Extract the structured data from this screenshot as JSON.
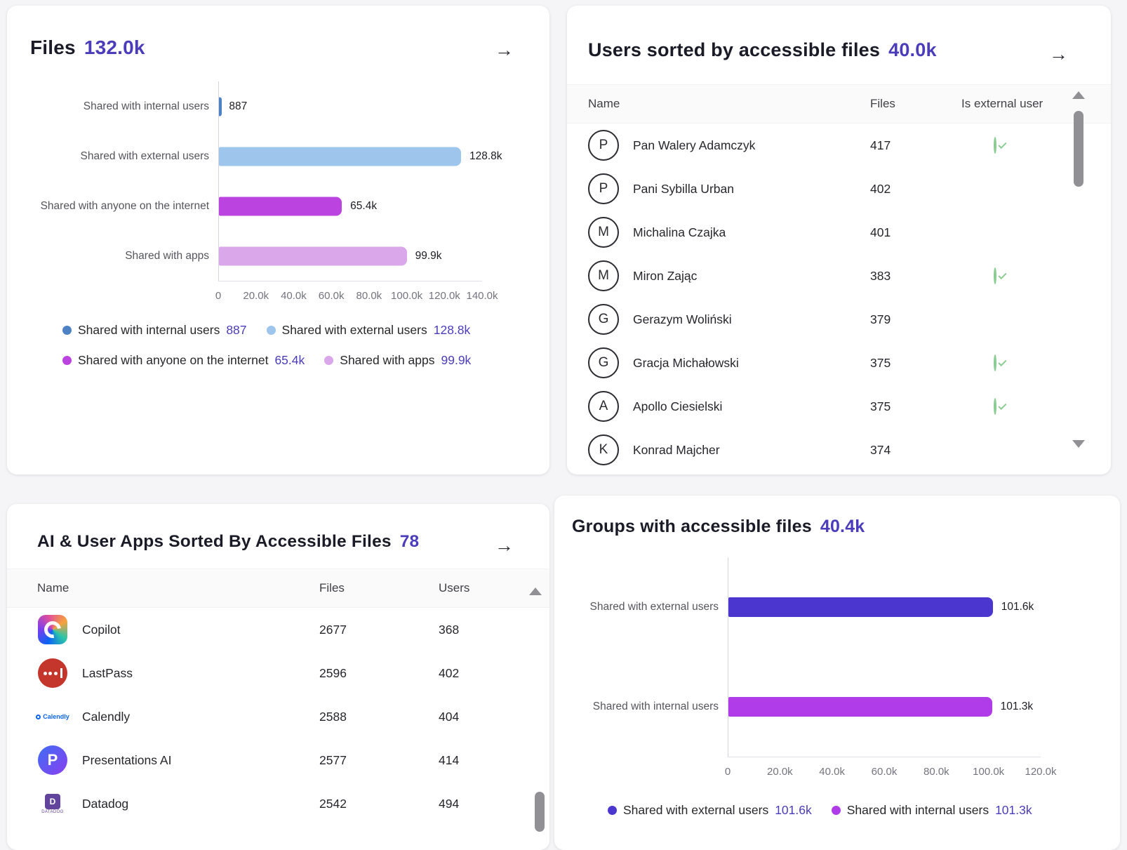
{
  "accent": "#4a3cbb",
  "cards": {
    "files": {
      "title": "Files",
      "total": "132.0k",
      "arrow": "→"
    },
    "users": {
      "title": "Users sorted by accessible files",
      "total": "40.0k",
      "arrow": "→",
      "columns": [
        "Name",
        "Files",
        "Is external user"
      ],
      "rows": [
        {
          "initial": "P",
          "name": "Pan Walery Adamczyk",
          "files": "417",
          "is_external": true
        },
        {
          "initial": "P",
          "name": "Pani Sybilla Urban",
          "files": "402",
          "is_external": false
        },
        {
          "initial": "M",
          "name": "Michalina Czajka",
          "files": "401",
          "is_external": false
        },
        {
          "initial": "M",
          "name": "Miron Zając",
          "files": "383",
          "is_external": true
        },
        {
          "initial": "G",
          "name": "Gerazym Woliński",
          "files": "379",
          "is_external": false
        },
        {
          "initial": "G",
          "name": "Gracja Michałowski",
          "files": "375",
          "is_external": true
        },
        {
          "initial": "A",
          "name": "Apollo Ciesielski",
          "files": "375",
          "is_external": true
        },
        {
          "initial": "K",
          "name": "Konrad Majcher",
          "files": "374",
          "is_external": false
        }
      ]
    },
    "apps": {
      "title": "AI & User Apps Sorted By Accessible Files",
      "total": "78",
      "arrow": "→",
      "columns": [
        "Name",
        "Files",
        "Users"
      ],
      "rows": [
        {
          "icon": "copilot-icon",
          "name": "Copilot",
          "files": "2677",
          "users": "368"
        },
        {
          "icon": "lastpass-icon",
          "name": "LastPass",
          "files": "2596",
          "users": "402"
        },
        {
          "icon": "calendly-icon",
          "name": "Calendly",
          "files": "2588",
          "users": "404"
        },
        {
          "icon": "presentations-ai-icon",
          "name": "Presentations AI",
          "files": "2577",
          "users": "414"
        },
        {
          "icon": "datadog-icon",
          "name": "Datadog",
          "files": "2542",
          "users": "494"
        }
      ]
    },
    "groups": {
      "title": "Groups with accessible files",
      "total": "40.4k"
    }
  },
  "chart_data": [
    {
      "type": "bar",
      "orientation": "horizontal",
      "title": "Files",
      "categories": [
        "Shared with internal users",
        "Shared with external users",
        "Shared with anyone on the internet",
        "Shared with apps"
      ],
      "values": [
        887,
        128800,
        65400,
        99900
      ],
      "value_labels": [
        "887",
        "128.8k",
        "65.4k",
        "99.9k"
      ],
      "colors": [
        "#4d82c4",
        "#9ec5ec",
        "#bb44e0",
        "#d9a7ea"
      ],
      "xlim": [
        0,
        140000
      ],
      "xticks": [
        "0",
        "20.0k",
        "40.0k",
        "60.0k",
        "80.0k",
        "100.0k",
        "120.0k",
        "140.0k"
      ],
      "grid": false,
      "legend_position": "bottom",
      "legend": [
        [
          {
            "label": "Shared with internal users",
            "value": "887",
            "color": "#4d82c4"
          },
          {
            "label": "Shared with external users",
            "value": "128.8k",
            "color": "#9ec5ec"
          }
        ],
        [
          {
            "label": "Shared with anyone on the internet",
            "value": "65.4k",
            "color": "#bb44e0"
          },
          {
            "label": "Shared with apps",
            "value": "99.9k",
            "color": "#d9a7ea"
          }
        ]
      ]
    },
    {
      "type": "bar",
      "orientation": "horizontal",
      "title": "Groups with accessible files",
      "categories": [
        "Shared with external users",
        "Shared with internal users"
      ],
      "values": [
        101600,
        101300
      ],
      "value_labels": [
        "101.6k",
        "101.3k"
      ],
      "colors": [
        "#4b36d0",
        "#b03be8"
      ],
      "xlim": [
        0,
        120000
      ],
      "xticks": [
        "0",
        "20.0k",
        "40.0k",
        "60.0k",
        "80.0k",
        "100.0k",
        "120.0k"
      ],
      "grid": false,
      "legend_position": "bottom",
      "legend": [
        [
          {
            "label": "Shared with external users",
            "value": "101.6k",
            "color": "#4b36d0"
          },
          {
            "label": "Shared with internal users",
            "value": "101.3k",
            "color": "#b03be8"
          }
        ]
      ]
    }
  ]
}
